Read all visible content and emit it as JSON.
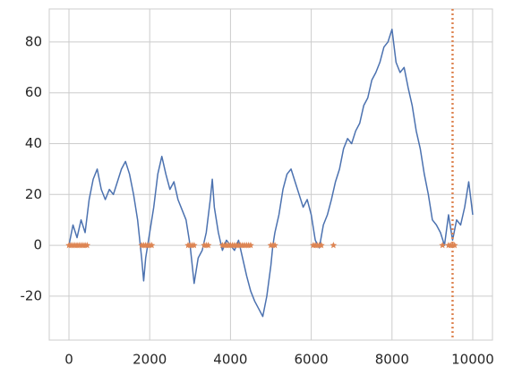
{
  "chart_data": {
    "type": "line",
    "x": [
      0,
      100,
      200,
      300,
      400,
      500,
      600,
      700,
      800,
      900,
      1000,
      1100,
      1200,
      1300,
      1400,
      1500,
      1600,
      1700,
      1800,
      1850,
      1900,
      2000,
      2100,
      2200,
      2300,
      2400,
      2500,
      2600,
      2700,
      2800,
      2900,
      3000,
      3100,
      3200,
      3300,
      3400,
      3500,
      3550,
      3600,
      3700,
      3800,
      3900,
      4000,
      4100,
      4200,
      4300,
      4400,
      4500,
      4600,
      4700,
      4800,
      4900,
      5000,
      5050,
      5100,
      5200,
      5300,
      5400,
      5500,
      5600,
      5700,
      5800,
      5900,
      6000,
      6100,
      6200,
      6300,
      6400,
      6500,
      6600,
      6700,
      6800,
      6900,
      7000,
      7100,
      7200,
      7300,
      7400,
      7500,
      7600,
      7700,
      7800,
      7900,
      8000,
      8100,
      8200,
      8300,
      8400,
      8500,
      8600,
      8700,
      8800,
      8900,
      9000,
      9100,
      9200,
      9300,
      9400,
      9500,
      9600,
      9700,
      9800,
      9900,
      10000
    ],
    "series": [
      {
        "color": "#4c72b0",
        "values": [
          0,
          8,
          3,
          10,
          5,
          18,
          26,
          30,
          22,
          18,
          22,
          20,
          25,
          30,
          33,
          28,
          20,
          10,
          -5,
          -14,
          -5,
          5,
          15,
          28,
          35,
          28,
          22,
          25,
          18,
          14,
          10,
          0,
          -15,
          -5,
          -2,
          5,
          18,
          26,
          15,
          5,
          -2,
          2,
          0,
          -2,
          2,
          -5,
          -12,
          -18,
          -22,
          -25,
          -28,
          -20,
          -8,
          0,
          5,
          12,
          22,
          28,
          30,
          25,
          20,
          15,
          18,
          12,
          2,
          -1,
          8,
          12,
          18,
          25,
          30,
          38,
          42,
          40,
          45,
          48,
          55,
          58,
          65,
          68,
          72,
          78,
          80,
          85,
          72,
          68,
          70,
          62,
          55,
          45,
          38,
          28,
          20,
          10,
          8,
          5,
          0,
          12,
          2,
          10,
          8,
          15,
          25,
          12
        ]
      }
    ],
    "markers": {
      "color": "#dd8452",
      "x": [
        0,
        50,
        100,
        150,
        200,
        250,
        300,
        350,
        400,
        450,
        1800,
        1850,
        1900,
        1950,
        2000,
        2050,
        2950,
        3000,
        3050,
        3100,
        3350,
        3400,
        3450,
        3800,
        3850,
        3900,
        3950,
        4000,
        4050,
        4100,
        4150,
        4200,
        4250,
        4300,
        4350,
        4400,
        4450,
        4500,
        5000,
        5050,
        5100,
        6050,
        6100,
        6150,
        6200,
        6250,
        6550,
        9250,
        9400,
        9450,
        9500,
        9550
      ],
      "y": [
        0,
        0,
        0,
        0,
        0,
        0,
        0,
        0,
        0,
        0,
        0,
        0,
        0,
        0,
        0,
        0,
        0,
        0,
        0,
        0,
        0,
        0,
        0,
        0,
        0,
        0,
        0,
        0,
        0,
        0,
        0,
        0,
        0,
        0,
        0,
        0,
        0,
        0,
        0,
        0,
        0,
        0,
        0,
        0,
        0,
        0,
        0,
        0,
        0,
        0,
        0,
        0
      ]
    },
    "vline": {
      "x": 9500,
      "color": "#dd8452"
    },
    "xlim": [
      -488,
      10488
    ],
    "ylim": [
      -37.3,
      93
    ],
    "xticks": [
      0,
      2000,
      4000,
      6000,
      8000,
      10000
    ],
    "yticks": [
      -20,
      0,
      20,
      40,
      60,
      80
    ],
    "grid": true
  }
}
